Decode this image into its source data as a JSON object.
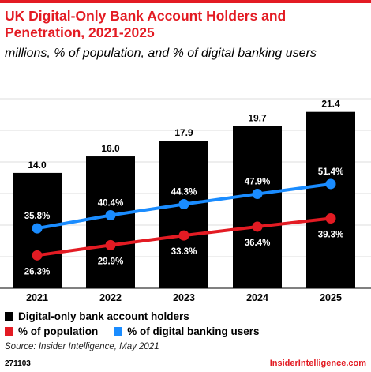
{
  "header": {
    "title": "UK Digital-Only Bank Account Holders and Penetration, 2021-2025",
    "subtitle": "millions, % of population, and % of digital banking users"
  },
  "chart_data": {
    "type": "bar",
    "categories": [
      "2021",
      "2022",
      "2023",
      "2024",
      "2025"
    ],
    "series": [
      {
        "name": "Digital-only bank account holders",
        "type": "bar",
        "values": [
          14.0,
          16.0,
          17.9,
          19.7,
          21.4
        ],
        "labels": [
          "14.0",
          "16.0",
          "17.9",
          "19.7",
          "21.4"
        ],
        "color": "#000000"
      },
      {
        "name": "% of population",
        "type": "line",
        "values": [
          26.3,
          29.9,
          33.3,
          36.4,
          39.3
        ],
        "labels": [
          "26.3%",
          "29.9%",
          "33.3%",
          "36.4%",
          "39.3%"
        ],
        "color": "#e31b23"
      },
      {
        "name": "% of digital banking users",
        "type": "line",
        "values": [
          35.8,
          40.4,
          44.3,
          47.9,
          51.4
        ],
        "labels": [
          "35.8%",
          "40.4%",
          "44.3%",
          "47.9%",
          "51.4%"
        ],
        "color": "#1a8cff"
      }
    ],
    "grid": true,
    "legend_position": "bottom-left"
  },
  "legend": {
    "bars": "Digital-only bank account holders",
    "population": "% of population",
    "digital_users": "% of digital banking users"
  },
  "footer": {
    "source": "Source: Insider Intelligence, May 2021",
    "id": "271103",
    "brand": "InsiderIntelligence.com"
  }
}
